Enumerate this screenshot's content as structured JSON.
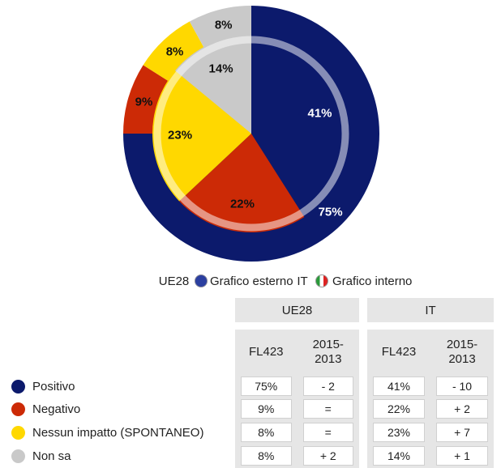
{
  "chart_data": {
    "type": "nested-donut",
    "categories": [
      "Positivo",
      "Negativo",
      "Nessun impatto (SPONTANEO)",
      "Non sa"
    ],
    "colors": [
      "#0c1a6c",
      "#cc2a06",
      "#ffd800",
      "#c9c9c9"
    ],
    "series": [
      {
        "name": "UE28",
        "ring_label": "Grafico esterno",
        "values": [
          75,
          9,
          8,
          8
        ],
        "value_labels": [
          "75%",
          "9%",
          "8%",
          "8%"
        ],
        "changes": [
          "- 2",
          "=",
          "=",
          "+ 2"
        ]
      },
      {
        "name": "IT",
        "ring_label": "Grafico interno",
        "values": [
          41,
          22,
          23,
          14
        ],
        "value_labels": [
          "41%",
          "22%",
          "23%",
          "14%"
        ],
        "changes": [
          "- 10",
          "+ 2",
          "+ 7",
          "+ 1"
        ]
      }
    ],
    "table_columns": [
      "FL423",
      "2015-2013"
    ]
  }
}
